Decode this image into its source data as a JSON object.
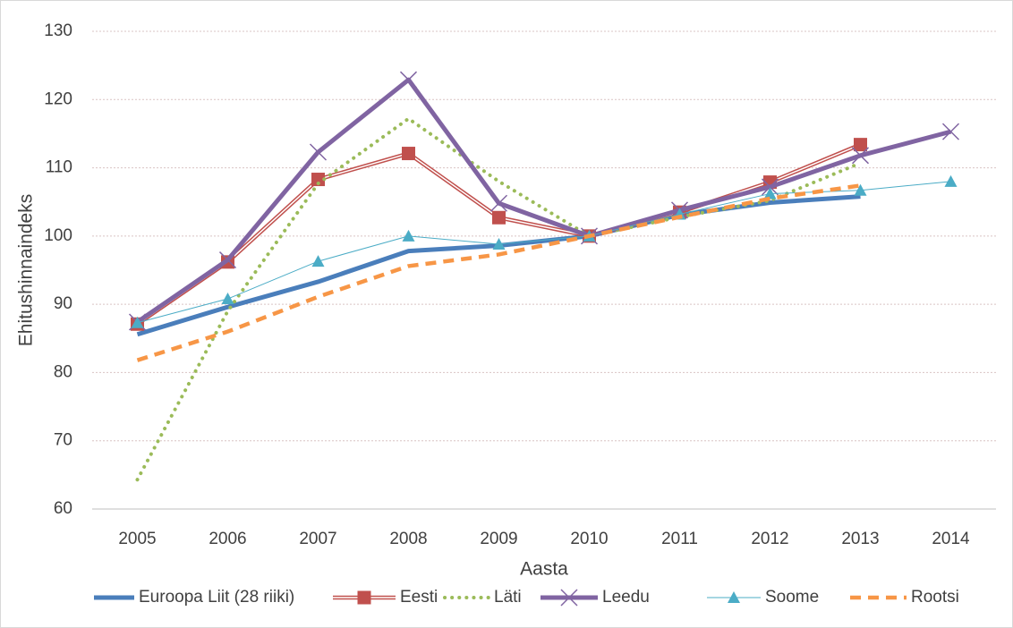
{
  "chart_data": {
    "type": "line",
    "x_label": "Aasta",
    "y_label": "Ehitushinnaindeks",
    "categories": [
      "2005",
      "2006",
      "2007",
      "2008",
      "2009",
      "2010",
      "2011",
      "2012",
      "2013",
      "2014"
    ],
    "ylim": [
      60,
      130
    ],
    "yticks": [
      60,
      70,
      80,
      90,
      100,
      110,
      120,
      130
    ],
    "grid": true,
    "legend": "bottom",
    "series": [
      {
        "name": "Euroopa Liit (28 riiki)",
        "color": "#4a7ebb",
        "style": "solid-thick",
        "marker": "none",
        "values": [
          85.6,
          89.6,
          93.3,
          97.8,
          98.6,
          100,
          103.1,
          104.9,
          105.8,
          null
        ]
      },
      {
        "name": "Eesti",
        "color": "#c0504d",
        "style": "double",
        "marker": "square",
        "values": [
          87.1,
          96.2,
          108.3,
          112.1,
          102.7,
          100,
          103.5,
          107.9,
          113.4,
          null
        ]
      },
      {
        "name": "Läti",
        "color": "#9bbb59",
        "style": "dotted",
        "marker": "none",
        "values": [
          64.3,
          89.0,
          107.7,
          117.2,
          108.0,
          100,
          102.8,
          105.2,
          110.7,
          null
        ]
      },
      {
        "name": "Leedu",
        "color": "#8064a2",
        "style": "solid-thick",
        "marker": "x",
        "values": [
          87.4,
          96.5,
          112.3,
          122.9,
          104.8,
          100,
          103.8,
          107.2,
          111.8,
          115.3
        ]
      },
      {
        "name": "Soome",
        "color": "#4bacc6",
        "style": "solid-thin",
        "marker": "triangle",
        "values": [
          87.3,
          90.8,
          96.3,
          100.0,
          98.8,
          100,
          103.2,
          106.2,
          106.7,
          108.0
        ]
      },
      {
        "name": "Rootsi",
        "color": "#f79646",
        "style": "dashed",
        "marker": "none",
        "values": [
          81.8,
          86.0,
          91.1,
          95.6,
          97.3,
          100,
          102.8,
          105.5,
          107.4,
          null
        ]
      }
    ]
  }
}
